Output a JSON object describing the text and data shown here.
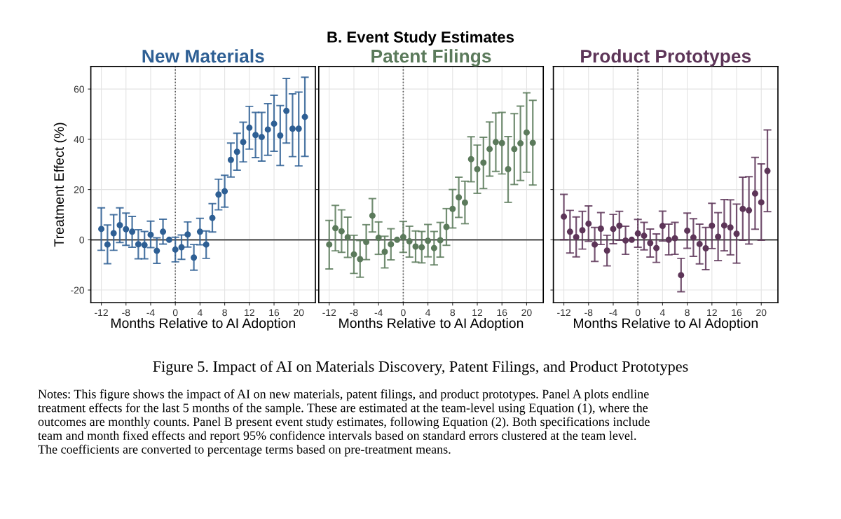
{
  "chart_data": [
    {
      "type": "scatter",
      "title": "New Materials",
      "xlabel": "Months Relative to AI Adoption",
      "ylabel": "Treatment Effect (%)",
      "annotations": [
        "B. Event Study Estimates",
        "Figure 5. Impact of AI on Materials Discovery, Patent Filings, and Product Prototypes",
        "Notes: This figure shows the impact of AI on new materials, patent filings, and product prototypes. Panel A plots endline\ntreatment effects for the last 5 months of the sample. These are estimated at the team-level using Equation (1), where the\noutcomes are monthly counts. Panel B present event study estimates, following Equation (2). Both specifications include\nteam and month fixed effects and report 95% confidence intervals based on standard errors clustered at the team level.\nThe coefficients are converted to percentage terms based on pre-treatment means."
      ],
      "x": [
        -12,
        -11,
        -10,
        -9,
        -8,
        -7,
        -6,
        -5,
        -4,
        -3,
        -2,
        -1,
        0,
        1,
        2,
        3,
        4,
        5,
        6,
        7,
        8,
        9,
        10,
        11,
        12,
        13,
        14,
        15,
        16,
        17,
        18,
        19,
        20,
        21
      ],
      "series": [
        {
          "color": "#2e5f94",
          "values": [
            4.3,
            -1.9,
            2.6,
            5.8,
            4.2,
            3.2,
            -1.8,
            -2.1,
            2.0,
            -4.4,
            3.2,
            0,
            -3.9,
            -3.0,
            2.1,
            -7.1,
            3.2,
            -1.9,
            8.7,
            18.0,
            19.3,
            31.8,
            35.0,
            38.9,
            44.6,
            41.7,
            40.9,
            43.9,
            46.2,
            41.5,
            51.3,
            44.2,
            44.2,
            48.9
          ],
          "errors": [
            [
              -4.2,
              12.7
            ],
            [
              -9.5,
              5.9
            ],
            [
              -4.2,
              10.0
            ],
            [
              -1.1,
              12.7
            ],
            [
              -2.2,
              10.6
            ],
            [
              -3.0,
              9.3
            ],
            [
              -7.6,
              4.0
            ],
            [
              -7.6,
              3.3
            ],
            [
              -3.1,
              7.4
            ],
            [
              -9.4,
              0.8
            ],
            [
              -1.7,
              8.2
            ],
            null,
            [
              -8.8,
              1.0
            ],
            [
              -7.8,
              1.9
            ],
            [
              -2.9,
              7.1
            ],
            [
              -12.1,
              -1.9
            ],
            [
              -2.0,
              8.5
            ],
            [
              -7.4,
              3.5
            ],
            [
              3.1,
              14.4
            ],
            [
              11.9,
              24.1
            ],
            [
              13.0,
              25.7
            ],
            [
              25.0,
              38.5
            ],
            [
              27.7,
              42.4
            ],
            [
              31.0,
              46.8
            ],
            [
              36.1,
              53.1
            ],
            [
              32.7,
              50.7
            ],
            [
              31.3,
              50.7
            ],
            [
              33.6,
              54.2
            ],
            [
              35.2,
              57.5
            ],
            [
              29.6,
              53.4
            ],
            [
              38.5,
              64.2
            ],
            [
              33.1,
              58.1
            ],
            [
              29.4,
              58.8
            ],
            [
              33.2,
              64.7
            ]
          ]
        }
      ],
      "marker": "circle",
      "grid": true,
      "xlim": [
        -13.7,
        22.7
      ],
      "ylim": [
        -25,
        69
      ],
      "xticks": [
        -12,
        -8,
        -4,
        0,
        4,
        8,
        12,
        16,
        20
      ],
      "yticks": [
        -20,
        0,
        20,
        40,
        60
      ],
      "ref_lines": [
        {
          "axis": "y",
          "value": 0,
          "color": "#555555",
          "line_style": "solid"
        },
        {
          "axis": "x",
          "value": 0,
          "color": "#555555",
          "line_style": "dotted"
        }
      ]
    },
    {
      "type": "scatter",
      "title": "Patent Filings",
      "xlabel": "Months Relative to AI Adoption",
      "x": [
        -12,
        -11,
        -10,
        -9,
        -8,
        -7,
        -6,
        -5,
        -4,
        -3,
        -2,
        -1,
        0,
        1,
        2,
        3,
        4,
        5,
        6,
        7,
        8,
        9,
        10,
        11,
        12,
        13,
        14,
        15,
        16,
        17,
        18,
        19,
        20,
        21
      ],
      "series": [
        {
          "color": "#5b7a5b",
          "values": [
            -1.9,
            4.6,
            3.4,
            1.0,
            -5.8,
            -7.7,
            -0.9,
            9.6,
            0.8,
            -4.8,
            -1.8,
            0,
            1.1,
            -0.6,
            -2.7,
            -3.0,
            -0.4,
            -3.3,
            -0.2,
            5.1,
            12.3,
            16.9,
            14.8,
            32.1,
            28.1,
            30.7,
            36.1,
            38.9,
            38.5,
            28.1,
            36.1,
            38.4,
            42.7,
            38.6
          ],
          "errors": [
            [
              -11.6,
              7.7
            ],
            [
              -4.4,
              13.7
            ],
            [
              -5.0,
              11.9
            ],
            [
              -7.0,
              9.0
            ],
            [
              -13.4,
              1.8
            ],
            [
              -14.9,
              -0.3
            ],
            [
              -7.9,
              6.0
            ],
            [
              3.1,
              16.4
            ],
            [
              -5.8,
              7.1
            ],
            [
              -11.2,
              1.4
            ],
            [
              -8.0,
              4.4
            ],
            null,
            [
              -5.0,
              7.3
            ],
            [
              -6.9,
              5.4
            ],
            [
              -8.9,
              3.5
            ],
            [
              -9.2,
              3.3
            ],
            [
              -6.8,
              6.1
            ],
            [
              -10.0,
              3.3
            ],
            [
              -6.9,
              6.9
            ],
            [
              -2.2,
              12.4
            ],
            [
              4.7,
              20.0
            ],
            [
              8.9,
              24.9
            ],
            [
              6.4,
              23.3
            ],
            [
              23.1,
              41.0
            ],
            [
              18.5,
              37.7
            ],
            [
              20.4,
              40.8
            ],
            [
              25.3,
              46.9
            ],
            [
              27.2,
              50.5
            ],
            [
              26.2,
              50.7
            ],
            [
              14.9,
              41.1
            ],
            [
              22.0,
              50.2
            ],
            [
              23.6,
              53.2
            ],
            [
              26.9,
              58.5
            ],
            [
              21.8,
              55.5
            ]
          ]
        }
      ],
      "marker": "circle",
      "grid": true,
      "tick_labels": "x",
      "xlim": [
        -13.7,
        22.7
      ],
      "ylim": [
        -25,
        69
      ],
      "xticks": [
        -12,
        -8,
        -4,
        0,
        4,
        8,
        12,
        16,
        20
      ],
      "yticks": [
        -20,
        0,
        20,
        40,
        60
      ],
      "ref_lines": [
        {
          "axis": "y",
          "value": 0,
          "color": "#555555",
          "line_style": "solid"
        },
        {
          "axis": "x",
          "value": 0,
          "color": "#555555",
          "line_style": "dotted"
        }
      ]
    },
    {
      "type": "scatter",
      "title": "Product Prototypes",
      "xlabel": "Months Relative to AI Adoption",
      "x": [
        -12,
        -11,
        -10,
        -9,
        -8,
        -7,
        -6,
        -5,
        -4,
        -3,
        -2,
        -1,
        0,
        1,
        2,
        3,
        4,
        5,
        6,
        7,
        8,
        9,
        10,
        11,
        12,
        13,
        14,
        15,
        16,
        17,
        18,
        19,
        20,
        21
      ],
      "series": [
        {
          "color": "#5d3558",
          "values": [
            9.2,
            3.2,
            1.1,
            3.8,
            6.4,
            -1.9,
            4.4,
            -4.3,
            4.3,
            5.6,
            -0.3,
            0,
            2.5,
            1.6,
            -1.3,
            -3.3,
            5.5,
            0.0,
            0.6,
            -14.1,
            3.6,
            0.9,
            -1.7,
            -3.4,
            5.6,
            1.2,
            5.7,
            4.9,
            2.4,
            12.3,
            11.7,
            18.4,
            14.9,
            27.4
          ],
          "errors": [
            [
              0.0,
              18.1
            ],
            [
              -5.3,
              11.7
            ],
            [
              -6.8,
              9.1
            ],
            [
              -3.7,
              11.3
            ],
            [
              -0.6,
              13.5
            ],
            [
              -8.6,
              4.9
            ],
            [
              -1.9,
              10.8
            ],
            [
              -10.4,
              1.8
            ],
            [
              -1.6,
              10.1
            ],
            [
              -0.2,
              11.3
            ],
            [
              -5.8,
              5.4
            ],
            null,
            [
              -3.0,
              8.1
            ],
            [
              -4.0,
              6.9
            ],
            [
              -6.9,
              4.3
            ],
            [
              -9.0,
              2.3
            ],
            [
              -0.5,
              11.4
            ],
            [
              -6.0,
              6.2
            ],
            [
              -5.8,
              6.9
            ],
            [
              -20.7,
              -7.4
            ],
            [
              -3.4,
              10.6
            ],
            [
              -6.6,
              8.4
            ],
            [
              -9.6,
              6.2
            ],
            [
              -11.9,
              4.9
            ],
            [
              -3.5,
              14.5
            ],
            [
              -8.3,
              10.8
            ],
            [
              -4.4,
              16.0
            ],
            [
              -6.0,
              15.9
            ],
            [
              -9.3,
              14.2
            ],
            [
              -0.2,
              24.9
            ],
            [
              -1.7,
              25.1
            ],
            [
              4.2,
              32.8
            ],
            [
              -0.2,
              30.2
            ],
            [
              11.2,
              43.7
            ]
          ]
        }
      ],
      "marker": "circle",
      "grid": true,
      "tick_labels": "x",
      "xlim": [
        -13.7,
        22.7
      ],
      "ylim": [
        -25,
        69
      ],
      "xticks": [
        -12,
        -8,
        -4,
        0,
        4,
        8,
        12,
        16,
        20
      ],
      "yticks": [
        -20,
        0,
        20,
        40,
        60
      ],
      "ref_lines": [
        {
          "axis": "y",
          "value": 0,
          "color": "#555555",
          "line_style": "solid"
        },
        {
          "axis": "x",
          "value": 0,
          "color": "#555555",
          "line_style": "dotted"
        }
      ]
    }
  ]
}
